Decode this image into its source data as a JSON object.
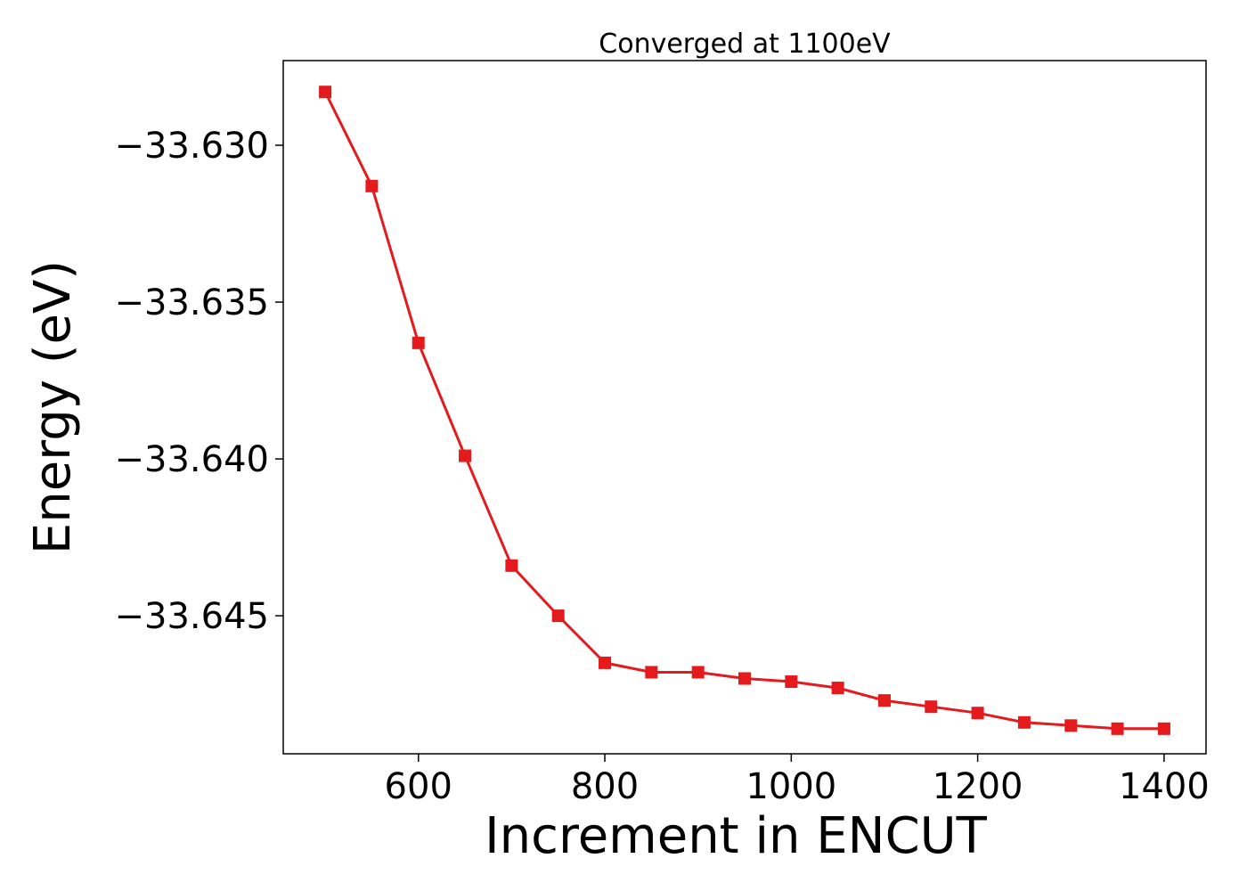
{
  "chart_data": {
    "type": "line",
    "title": "Converged at 1100eV",
    "xlabel": "Increment in ENCUT",
    "ylabel": "Energy (eV)",
    "xlim": [
      455,
      1445
    ],
    "ylim": [
      -33.6494,
      -33.6273
    ],
    "xticks": [
      600,
      800,
      1000,
      1200,
      1400
    ],
    "xtick_labels": [
      "600",
      "800",
      "1000",
      "1200",
      "1400"
    ],
    "yticks": [
      -33.63,
      -33.635,
      -33.64,
      -33.645
    ],
    "ytick_labels": [
      "−33.630",
      "−33.635",
      "−33.640",
      "−33.645"
    ],
    "grid": false,
    "legend": false,
    "series": [
      {
        "color": "#e41a1c",
        "marker": "square",
        "x": [
          500,
          550,
          600,
          650,
          700,
          750,
          800,
          850,
          900,
          950,
          1000,
          1050,
          1100,
          1150,
          1200,
          1250,
          1300,
          1350,
          1400
        ],
        "y": [
          -33.6283,
          -33.6313,
          -33.6363,
          -33.6399,
          -33.6434,
          -33.645,
          -33.6465,
          -33.6468,
          -33.6468,
          -33.647,
          -33.6471,
          -33.6473,
          -33.6477,
          -33.6479,
          -33.6481,
          -33.6484,
          -33.6485,
          -33.6486,
          -33.6486
        ]
      }
    ]
  }
}
